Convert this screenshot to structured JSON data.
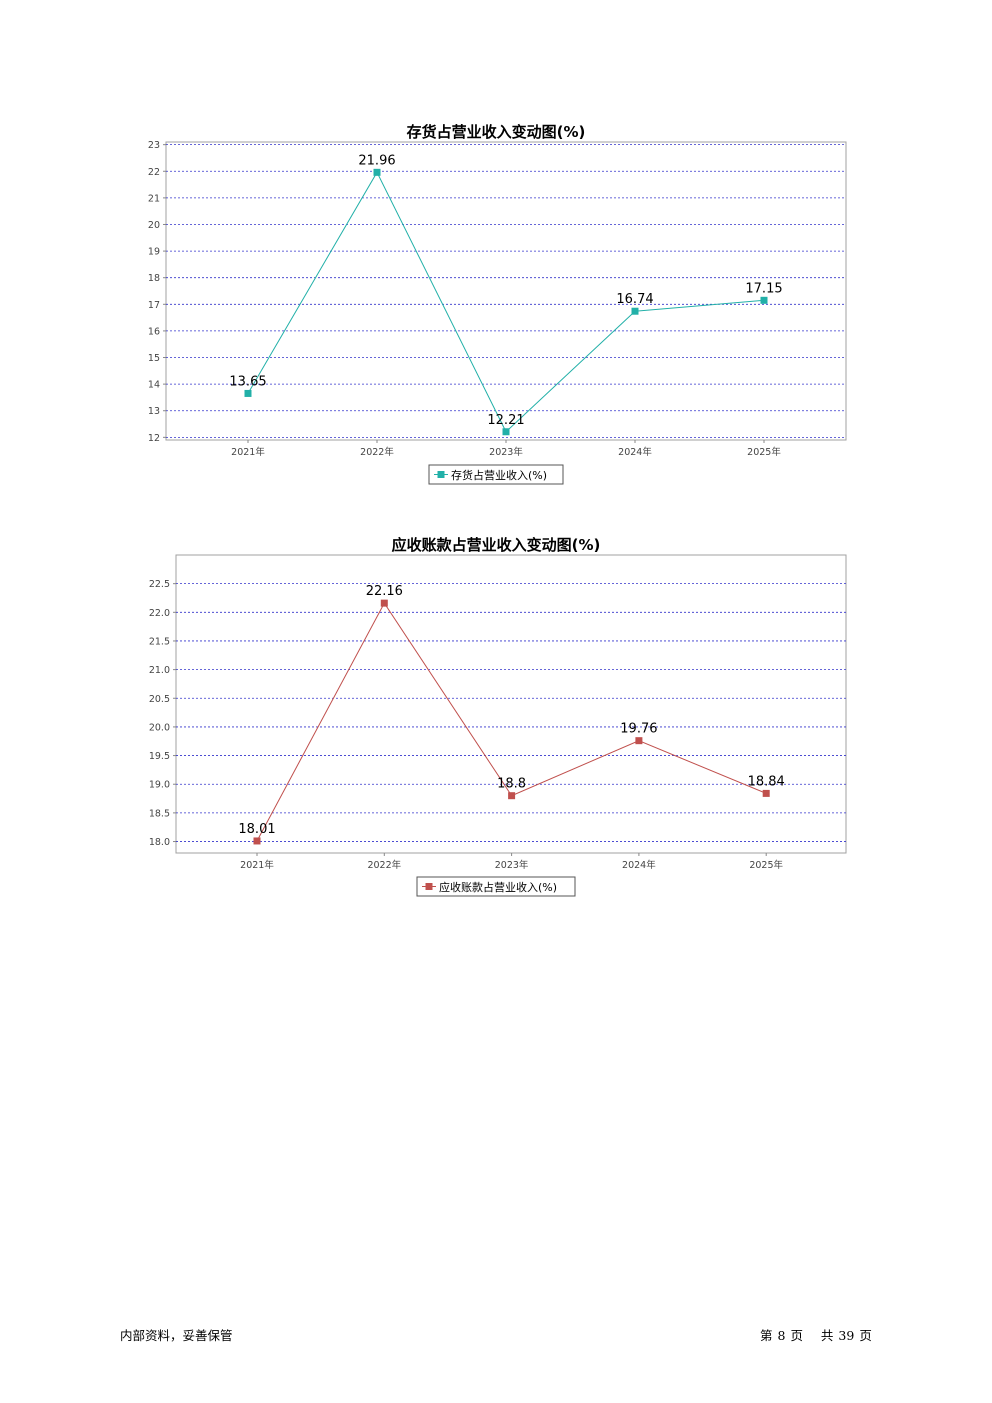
{
  "chart_data": [
    {
      "type": "line",
      "title": "存货占营业收入变动图(%)",
      "categories": [
        "2021年",
        "2022年",
        "2023年",
        "2024年",
        "2025年"
      ],
      "series": [
        {
          "name": "存货占营业收入(%)",
          "values": [
            13.65,
            21.96,
            12.21,
            16.74,
            17.15
          ],
          "color": "#22b0a8"
        }
      ],
      "y_ticks": [
        "12",
        "13",
        "14",
        "15",
        "16",
        "17",
        "18",
        "19",
        "20",
        "21",
        "22",
        "23"
      ],
      "ylim": [
        11.9,
        23.1
      ],
      "grid": true,
      "grid_color": "#3333cc",
      "legend_position": "bottom"
    },
    {
      "type": "line",
      "title": "应收账款占营业收入变动图(%)",
      "categories": [
        "2021年",
        "2022年",
        "2023年",
        "2024年",
        "2025年"
      ],
      "series": [
        {
          "name": "应收账款占营业收入(%)",
          "values": [
            18.01,
            22.16,
            18.8,
            19.76,
            18.84
          ],
          "color": "#c0504d"
        }
      ],
      "y_ticks": [
        "18.0",
        "18.5",
        "19.0",
        "19.5",
        "20.0",
        "20.5",
        "21.0",
        "21.5",
        "22.0",
        "22.5"
      ],
      "ylim": [
        17.8,
        23.0
      ],
      "grid": true,
      "grid_color": "#3333cc",
      "legend_position": "bottom"
    }
  ],
  "footer": {
    "left_text": "内部资料，妥善保管",
    "page_prefix": "第",
    "page_number": "8",
    "page_unit": "页",
    "total_prefix": "共",
    "total_pages": "39",
    "total_unit": "页"
  }
}
